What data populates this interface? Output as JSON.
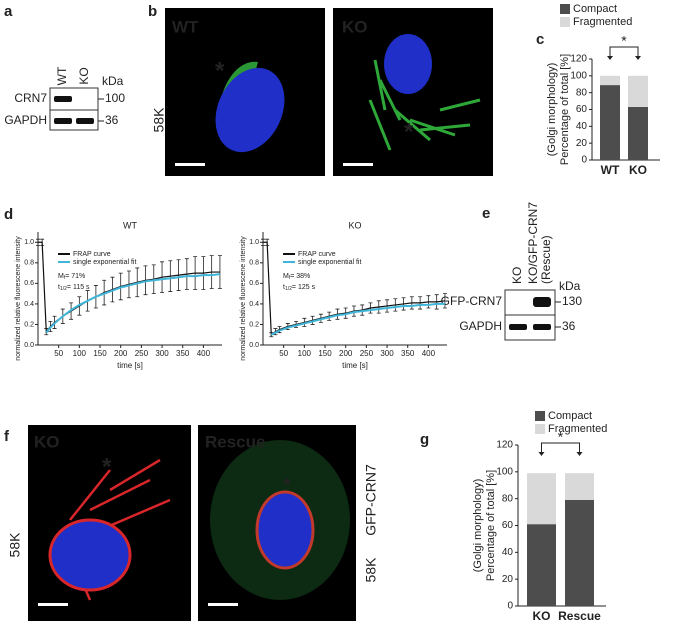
{
  "panel_labels": [
    "a",
    "b",
    "c",
    "d",
    "e",
    "f",
    "g"
  ],
  "blot_a": {
    "lanes": [
      "WT",
      "KO"
    ],
    "unit": "kDa",
    "rows": [
      {
        "name": "CRN7",
        "size": "100"
      },
      {
        "name": "GAPDH",
        "size": "36"
      }
    ]
  },
  "images_b": {
    "stain": "58K",
    "labels": [
      "WT",
      "KO"
    ],
    "markers": [
      "*",
      "*"
    ]
  },
  "blot_e": {
    "lanes": [
      [
        "KO"
      ],
      [
        "KO/GFP-CRN7",
        "(Rescue)"
      ]
    ],
    "unit": "kDa",
    "rows": [
      {
        "name": "GFP-CRN7",
        "size": "130"
      },
      {
        "name": "GAPDH",
        "size": "36"
      }
    ]
  },
  "images_f": {
    "labels": [
      "KO",
      "Rescue"
    ],
    "markers": [
      "*",
      "*"
    ],
    "stain_left": "58K",
    "stain_right_green": "GFP-CRN7",
    "stain_right_red": "58K"
  },
  "chart_data": [
    {
      "type": "stacked-bar",
      "categories": [
        "WT",
        "KO"
      ],
      "ylabel": [
        "(Golgi morphology)",
        "Percentage of total [%]"
      ],
      "series": [
        {
          "name": "Compact",
          "color": "#4d4d4d",
          "values": [
            89,
            63
          ]
        },
        {
          "name": "Fragmented",
          "color": "#d9d9d9",
          "values": [
            11,
            37
          ]
        }
      ],
      "ylim": [
        0,
        120
      ],
      "yticks": [
        0,
        20,
        40,
        60,
        80,
        100,
        120
      ],
      "significance": "*"
    },
    {
      "type": "line",
      "title": "WT",
      "xlabel": "time [s]",
      "ylabel": "normalized relative fluorescene intensity",
      "x": [
        0,
        10,
        20,
        30,
        40,
        60,
        80,
        100,
        120,
        140,
        160,
        180,
        200,
        220,
        240,
        260,
        280,
        300,
        320,
        340,
        360,
        380,
        400,
        420,
        440
      ],
      "series": [
        {
          "name": "FRAP curve",
          "color": "#111111",
          "values": [
            1.0,
            1.0,
            0.13,
            0.18,
            0.22,
            0.28,
            0.33,
            0.38,
            0.43,
            0.47,
            0.51,
            0.54,
            0.57,
            0.59,
            0.61,
            0.63,
            0.64,
            0.66,
            0.67,
            0.68,
            0.69,
            0.7,
            0.7,
            0.71,
            0.71
          ],
          "errors": [
            0.03,
            0.03,
            0.03,
            0.05,
            0.06,
            0.07,
            0.08,
            0.09,
            0.1,
            0.11,
            0.12,
            0.12,
            0.13,
            0.13,
            0.14,
            0.14,
            0.14,
            0.15,
            0.15,
            0.15,
            0.15,
            0.16,
            0.16,
            0.16,
            0.16
          ]
        },
        {
          "name": "single exponential fit",
          "color": "#3fb6d9",
          "values": [
            null,
            null,
            0.12,
            0.17,
            0.21,
            0.28,
            0.34,
            0.39,
            0.43,
            0.47,
            0.5,
            0.53,
            0.56,
            0.58,
            0.6,
            0.62,
            0.63,
            0.64,
            0.65,
            0.66,
            0.67,
            0.67,
            0.68,
            0.68,
            0.69
          ]
        }
      ],
      "annotations": [
        {
          "main": "M",
          "sub": "f",
          "rest": "= 71%"
        },
        {
          "main": "t",
          "sub": "1/2",
          "rest": "= 115 s"
        }
      ],
      "xlim": [
        0,
        445
      ],
      "xticks": [
        50,
        100,
        150,
        200,
        250,
        300,
        350,
        400
      ],
      "ylim": [
        0,
        1.1
      ],
      "yticks": [
        {
          "value": 0,
          "label": "0.0"
        },
        0.2,
        0.4,
        0.6,
        0.8,
        {
          "value": 1,
          "label": "1.0"
        }
      ]
    },
    {
      "type": "line",
      "title": "KO",
      "xlabel": "time [s]",
      "ylabel": "normalized relative fluorescene intensity",
      "x": [
        0,
        10,
        20,
        30,
        40,
        60,
        80,
        100,
        120,
        140,
        160,
        180,
        200,
        220,
        240,
        260,
        280,
        300,
        320,
        340,
        360,
        380,
        400,
        420,
        440
      ],
      "series": [
        {
          "name": "FRAP curve",
          "color": "#111111",
          "values": [
            1.0,
            1.0,
            0.1,
            0.13,
            0.15,
            0.18,
            0.2,
            0.22,
            0.24,
            0.26,
            0.28,
            0.3,
            0.31,
            0.33,
            0.34,
            0.36,
            0.37,
            0.38,
            0.39,
            0.4,
            0.41,
            0.41,
            0.42,
            0.42,
            0.43
          ],
          "errors": [
            0.03,
            0.03,
            0.02,
            0.03,
            0.03,
            0.03,
            0.03,
            0.04,
            0.04,
            0.04,
            0.04,
            0.05,
            0.05,
            0.05,
            0.05,
            0.05,
            0.06,
            0.06,
            0.06,
            0.06,
            0.06,
            0.06,
            0.06,
            0.07,
            0.07
          ]
        },
        {
          "name": "single exponential fit",
          "color": "#3fb6d9",
          "values": [
            null,
            null,
            0.1,
            0.12,
            0.14,
            0.17,
            0.19,
            0.21,
            0.23,
            0.25,
            0.27,
            0.29,
            0.3,
            0.32,
            0.33,
            0.34,
            0.35,
            0.36,
            0.37,
            0.38,
            0.38,
            0.39,
            0.39,
            0.4,
            0.4
          ]
        }
      ],
      "annotations": [
        {
          "main": "M",
          "sub": "f",
          "rest": "= 38%"
        },
        {
          "main": "t",
          "sub": "1/2",
          "rest": "= 125 s"
        }
      ],
      "xlim": [
        0,
        445
      ],
      "xticks": [
        50,
        100,
        150,
        200,
        250,
        300,
        350,
        400
      ],
      "ylim": [
        0,
        1.1
      ],
      "yticks": [
        {
          "value": 0,
          "label": "0.0"
        },
        0.2,
        0.4,
        0.6,
        0.8,
        {
          "value": 1,
          "label": "1.0"
        }
      ]
    },
    {
      "type": "stacked-bar",
      "categories": [
        "KO",
        "Rescue"
      ],
      "ylabel": [
        "(Golgi morphology)",
        "Percentage of total [%]"
      ],
      "series": [
        {
          "name": "Compact",
          "color": "#4d4d4d",
          "values": [
            61,
            79
          ]
        },
        {
          "name": "Fragmented",
          "color": "#d9d9d9",
          "values": [
            38,
            20
          ]
        }
      ],
      "ylim": [
        0,
        120
      ],
      "yticks": [
        0,
        20,
        40,
        60,
        80,
        100,
        120
      ],
      "significance": "*"
    }
  ]
}
